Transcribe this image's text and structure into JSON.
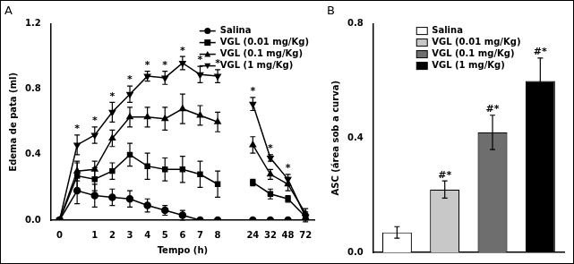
{
  "chart_data": [
    {
      "type": "line",
      "title": "A",
      "x_label": "Tempo (h)",
      "y_label": "Edema de pata (ml)",
      "categories": [
        0,
        null,
        1,
        2,
        3,
        4,
        5,
        6,
        7,
        8,
        null,
        24,
        32,
        48,
        72
      ],
      "ylim": [
        0,
        1.2
      ],
      "yticks": [
        {
          "value": 0,
          "label": "0.0"
        },
        0.4,
        0.8,
        1.2
      ],
      "grid": false,
      "legend": "upper right",
      "series": [
        {
          "name": "Salina",
          "color": "#000000",
          "marker": "circle",
          "values": [
            0,
            0.18,
            0.15,
            0.14,
            0.13,
            0.09,
            0.06,
            0.03,
            0,
            0,
            null,
            0,
            0,
            0,
            0
          ],
          "errors": [
            0,
            0.08,
            0.07,
            0.05,
            0.05,
            0.04,
            0.03,
            0.03,
            0,
            0,
            null,
            0,
            0,
            0,
            0
          ]
        },
        {
          "name": "VGL (0.01 mg/Kg)",
          "color": "#000000",
          "marker": "square",
          "values": [
            0,
            0.27,
            0.25,
            0.3,
            0.4,
            0.33,
            0.31,
            0.31,
            0.28,
            0.22,
            null,
            0.23,
            0.16,
            0.13,
            0.02
          ],
          "errors": [
            0,
            0.08,
            0.07,
            0.05,
            0.07,
            0.08,
            0.07,
            0.08,
            0.08,
            0.08,
            null,
            0.02,
            0.03,
            0.02,
            0.02
          ]
        },
        {
          "name": "VGL (0.1 mg/Kg)",
          "color": "#000000",
          "marker": "triangle",
          "values": [
            0,
            0.3,
            0.31,
            0.5,
            0.63,
            0.63,
            0.62,
            0.68,
            0.64,
            0.6,
            null,
            0.46,
            0.28,
            0.22,
            0.04
          ],
          "errors": [
            0,
            0.06,
            0.05,
            0.05,
            0.06,
            0.06,
            0.07,
            0.09,
            0.06,
            0.06,
            null,
            0.05,
            0.03,
            0.04,
            0.03
          ]
        },
        {
          "name": "VGL (1 mg/Kg)",
          "color": "#000000",
          "marker": "triangle_down",
          "values": [
            0,
            0.46,
            0.52,
            0.66,
            0.77,
            0.88,
            0.87,
            0.96,
            0.89,
            0.88,
            null,
            0.71,
            0.38,
            0.25,
            0.02
          ],
          "errors": [
            0,
            0.06,
            0.05,
            0.06,
            0.05,
            0.03,
            0.04,
            0.04,
            0.05,
            0.04,
            null,
            0.04,
            0.02,
            0.03,
            0.03
          ],
          "annotations": [
            null,
            "*",
            "*",
            "*",
            "*",
            "*",
            "*",
            "*",
            "*",
            "*",
            null,
            "*",
            "*",
            "*",
            null
          ]
        }
      ]
    },
    {
      "type": "bar",
      "title": "B",
      "y_label": "ASC (área sob a curva)",
      "categories": [
        "Salina",
        "VGL (0.01 mg/Kg)",
        "VGL (0.1 mg/Kg)",
        "VGL (1 mg/Kg)"
      ],
      "values": [
        0.07,
        0.22,
        0.42,
        0.6
      ],
      "errors": [
        0.02,
        0.03,
        0.06,
        0.08
      ],
      "annotations": [
        null,
        "#*",
        "#*",
        "#*"
      ],
      "colors": [
        "#ffffff",
        "#c8c8c8",
        "#6e6e6e",
        "#000000"
      ],
      "ylim": [
        0,
        0.8
      ],
      "yticks": [
        {
          "value": 0,
          "label": "0.0"
        },
        0.4,
        0.8
      ],
      "grid": false,
      "legend": "upper center",
      "tick_labels": "y"
    }
  ]
}
